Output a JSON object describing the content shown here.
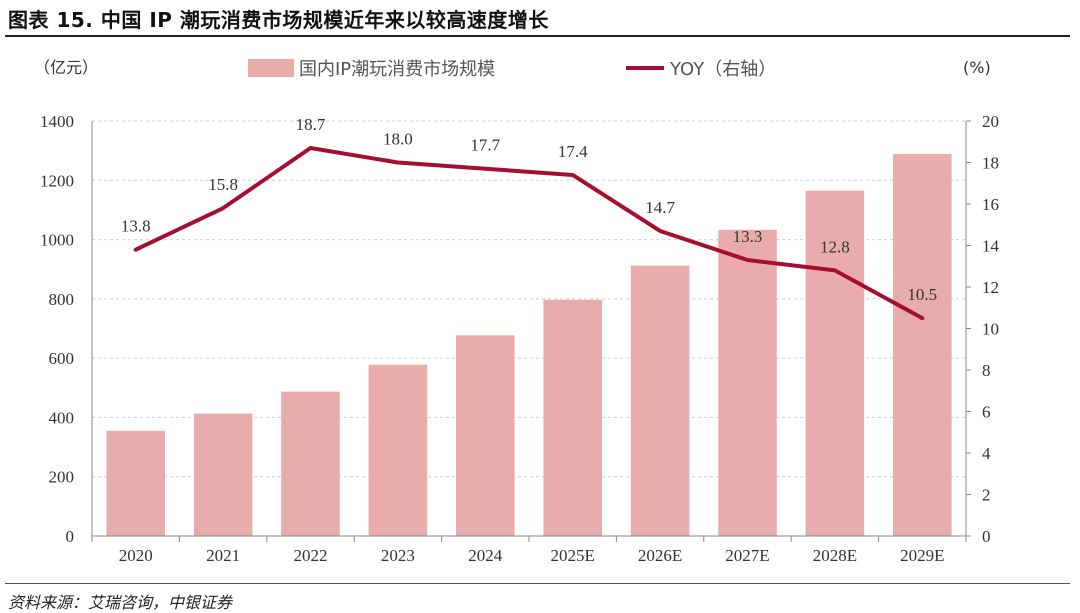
{
  "figure_title": "图表 15. 中国 IP 潮玩消费市场规模近年来以较高速度增长",
  "source": "资料来源：艾瑞咨询，中银证券",
  "colors": {
    "bar": "#e8adab",
    "line": "#a50f2d",
    "grid": "#cfcfcf",
    "axis": "#888888"
  },
  "chart_data": {
    "type": "bar",
    "title": "中国 IP 潮玩消费市场规模近年来以较高速度增长",
    "categories": [
      "2020",
      "2021",
      "2022",
      "2023",
      "2024",
      "2025E",
      "2026E",
      "2027E",
      "2028E",
      "2029E"
    ],
    "series": [
      {
        "name": "国内IP潮玩消费市场规模",
        "type": "bar",
        "axis": "left",
        "values": [
          355,
          413,
          487,
          578,
          677,
          797,
          912,
          1033,
          1165,
          1289
        ]
      },
      {
        "name": "YOY（右轴）",
        "type": "line",
        "axis": "right",
        "values": [
          13.8,
          15.8,
          18.7,
          18.0,
          17.7,
          17.4,
          14.7,
          13.3,
          12.8,
          10.5
        ],
        "labels": [
          "13.8",
          "15.8",
          "18.7",
          "18.0",
          "17.7",
          "17.4",
          "14.7",
          "13.3",
          "12.8",
          "10.5"
        ]
      }
    ],
    "y_left": {
      "label": "（亿元）",
      "ylim": [
        0,
        1400
      ],
      "ticks": [
        "0",
        "200",
        "400",
        "600",
        "800",
        "1000",
        "1200",
        "1400"
      ]
    },
    "y_right": {
      "label": "(%)",
      "ylim": [
        0,
        20
      ],
      "ticks": [
        "0",
        "2",
        "4",
        "6",
        "8",
        "10",
        "12",
        "14",
        "16",
        "18",
        "20"
      ]
    },
    "grid": true,
    "legend_position": "top"
  }
}
